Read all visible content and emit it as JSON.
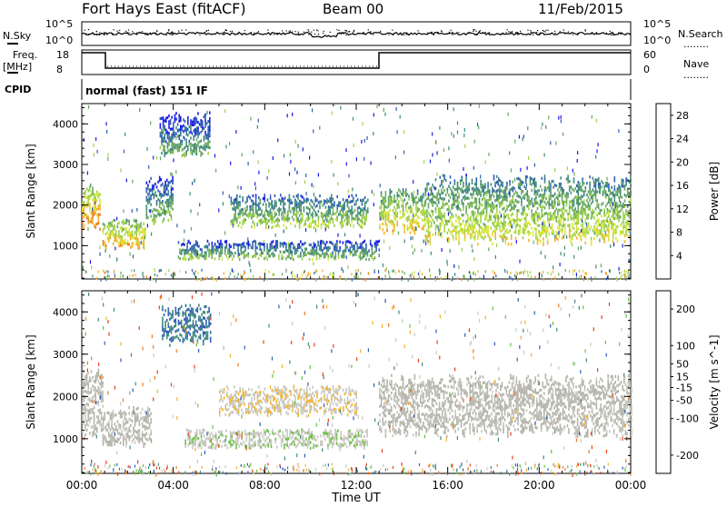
{
  "header": {
    "station": "Fort Hays East (fitACF)",
    "beam": "Beam 00",
    "date": "11/Feb/2015"
  },
  "summary_panels": {
    "nsky_label": "N.Sky",
    "nsearch_label": "N.Search",
    "noise_ticks": [
      "10^5",
      "10^0"
    ],
    "freq_label": "Freq.",
    "freq_unit": "[MHz]",
    "freq_ticks": [
      "18",
      "8"
    ],
    "nave_label": "Nave",
    "nave_ticks": [
      "60",
      "0"
    ],
    "cpid_label": "CPID",
    "cpid_value": "normal (fast) 151 IF",
    "legend_dots": "........"
  },
  "colors": {
    "power_scale": [
      "#1a1ae6",
      "#2e5fb4",
      "#3f8a7a",
      "#6aa860",
      "#9cd14a",
      "#d6e63a",
      "#f2b12a",
      "#f07a1e",
      "#e84018",
      "#e01010"
    ],
    "velocity_scale": [
      "#1a1ae6",
      "#2e5fb4",
      "#3f8a7a",
      "#69c041",
      "#c8c8c0",
      "#c8c8c0",
      "#f2b12a",
      "#f07a1e",
      "#e84018",
      "#e01010"
    ],
    "ground_scatter": "#b4b4aa"
  },
  "chart_data": [
    {
      "type": "heatmap",
      "title": "Power",
      "xlabel": "Time UT",
      "ylabel": "Slant Range [km]",
      "x_ticks": [
        "00:00",
        "04:00",
        "08:00",
        "12:00",
        "16:00",
        "20:00",
        "00:00"
      ],
      "y_ticks": [
        1000,
        2000,
        3000,
        4000
      ],
      "x_range_hours": [
        0,
        24
      ],
      "y_range_km": [
        180,
        4500
      ],
      "colorbar": {
        "label": "Power [dB]",
        "ticks": [
          4,
          8,
          12,
          16,
          20,
          24,
          28
        ],
        "range": [
          0,
          30
        ]
      },
      "scatter_regions": [
        {
          "t": [
            0.0,
            0.8
          ],
          "r_low": 1500,
          "r_high": 2400,
          "level": 18
        },
        {
          "t": [
            0.9,
            2.8
          ],
          "r_low": 1000,
          "r_high": 1600,
          "level": 16
        },
        {
          "t": [
            2.8,
            4.0
          ],
          "r_low": 1600,
          "r_high": 2600,
          "level": 8
        },
        {
          "t": [
            3.4,
            5.6
          ],
          "r_low": 3300,
          "r_high": 4200,
          "level": 6
        },
        {
          "t": [
            4.2,
            13.0
          ],
          "r_low": 700,
          "r_high": 1100,
          "level": 8
        },
        {
          "t": [
            6.5,
            12.5
          ],
          "r_low": 1500,
          "r_high": 2200,
          "level": 10
        },
        {
          "t": [
            13.0,
            15.0
          ],
          "r_low": 1400,
          "r_high": 2300,
          "level": 14
        },
        {
          "t": [
            15.0,
            24.0
          ],
          "r_low": 1200,
          "r_high": 2600,
          "level": 12
        }
      ]
    },
    {
      "type": "heatmap",
      "title": "Velocity",
      "xlabel": "Time UT",
      "ylabel": "Slant Range [km]",
      "x_ticks": [
        "00:00",
        "04:00",
        "08:00",
        "12:00",
        "16:00",
        "20:00",
        "00:00"
      ],
      "y_ticks": [
        1000,
        2000,
        3000,
        4000
      ],
      "x_range_hours": [
        0,
        24
      ],
      "y_range_km": [
        180,
        4500
      ],
      "colorbar": {
        "label": "Velocity [m s^-1]",
        "ticks": [
          200,
          100,
          50,
          15,
          -15,
          -50,
          -100,
          -200
        ],
        "range": [
          -250,
          250
        ]
      },
      "scatter_regions": [
        {
          "t": [
            0.0,
            0.9
          ],
          "r_low": 1200,
          "r_high": 2600,
          "level": 0
        },
        {
          "t": [
            0.9,
            3.0
          ],
          "r_low": 900,
          "r_high": 1700,
          "level": 0
        },
        {
          "t": [
            3.5,
            5.6
          ],
          "r_low": 3300,
          "r_high": 4100,
          "level": 150
        },
        {
          "t": [
            4.5,
            12.5
          ],
          "r_low": 800,
          "r_high": 1200,
          "level": 40
        },
        {
          "t": [
            6.0,
            12.0
          ],
          "r_low": 1600,
          "r_high": 2200,
          "level": -40
        },
        {
          "t": [
            13.0,
            24.0
          ],
          "r_low": 1200,
          "r_high": 2400,
          "level": 0
        }
      ]
    }
  ]
}
